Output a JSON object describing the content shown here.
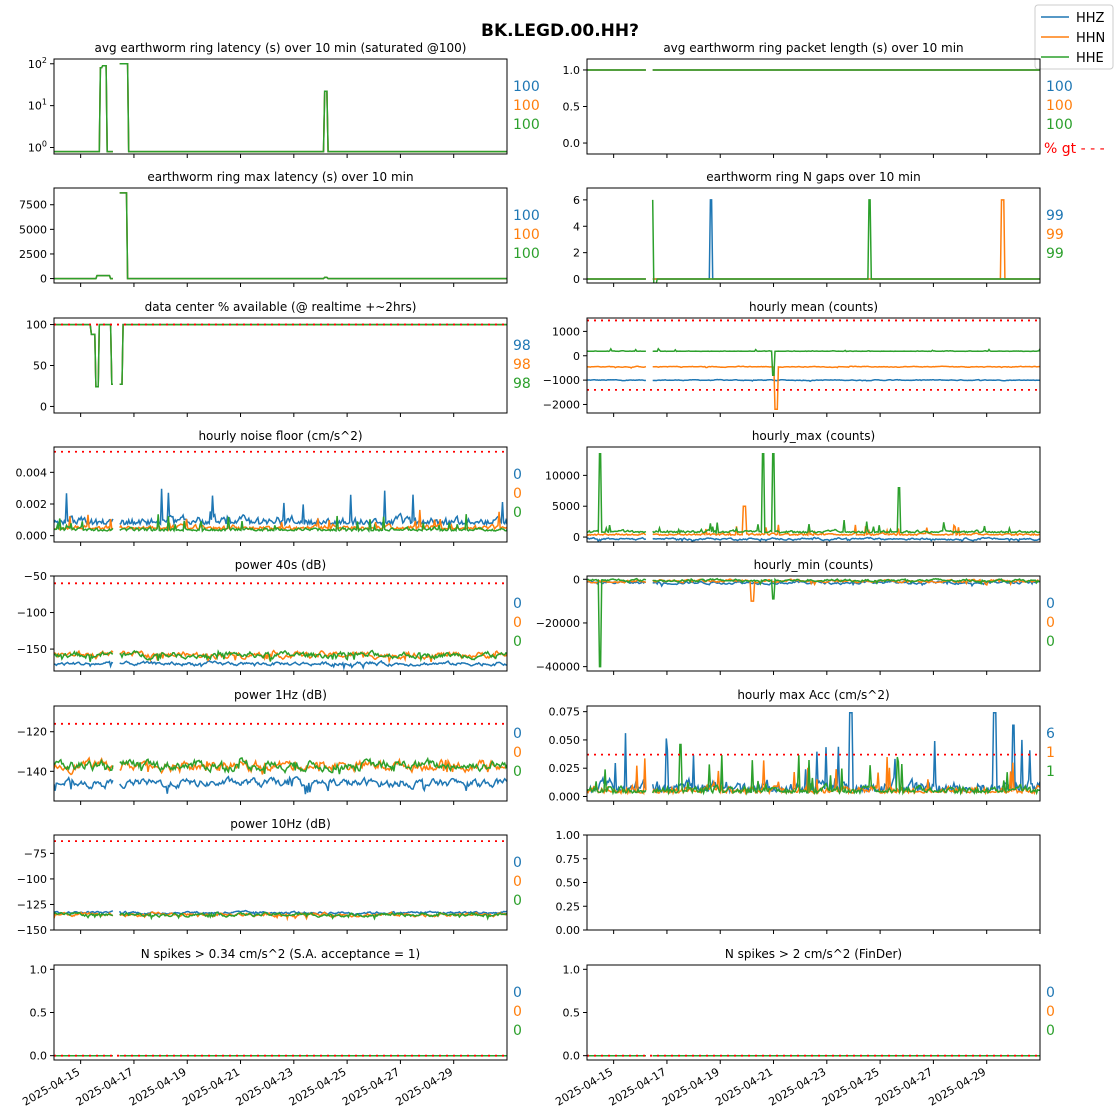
{
  "figure_title": "BK.LEGD.00.HH?",
  "legend": {
    "placement": "top-right",
    "entries": [
      {
        "label": "HHZ",
        "color": "#1f77b4"
      },
      {
        "label": "HHN",
        "color": "#ff7f0e"
      },
      {
        "label": "HHE",
        "color": "#2ca02c"
      }
    ]
  },
  "colors": {
    "HHZ": "#1f77b4",
    "HHN": "#ff7f0e",
    "HHE": "#2ca02c",
    "threshold": "#ff0000"
  },
  "x_ticks": [
    "2025-04-15",
    "2025-04-17",
    "2025-04-19",
    "2025-04-21",
    "2025-04-23",
    "2025-04-25",
    "2025-04-27",
    "2025-04-29"
  ],
  "x_range": [
    "2025-04-14",
    "2025-05-01"
  ],
  "chart_data": [
    {
      "title": "avg earthworm ring latency (s)   over 10 min (saturated @100)",
      "type": "line",
      "yscale": "log",
      "ylim": [
        0.7,
        130
      ],
      "yticks": [
        {
          "v": 1,
          "l": "10"
        },
        {
          "v": 10,
          "l": "10"
        },
        {
          "v": 100,
          "l": "10"
        }
      ],
      "ytick_exp": [
        "0",
        "1",
        "2"
      ],
      "baseline": {
        "HHZ": 0.8,
        "HHN": 0.8,
        "HHE": 0.8
      },
      "spikes": [
        {
          "t": 1.8,
          "v": 80,
          "w": 0.08
        },
        {
          "t": 1.9,
          "v": 90,
          "w": 0.08
        },
        {
          "t": 2.55,
          "v": 100,
          "w": 0.15
        },
        {
          "t": 2.7,
          "v": 100,
          "w": 0.1
        },
        {
          "t": 10.2,
          "v": 22,
          "w": 0.05
        }
      ],
      "stats": [
        "100",
        "100",
        "100"
      ],
      "threshold": null,
      "gt_label": null
    },
    {
      "title": "avg earthworm ring packet length (s)   over 10 min",
      "type": "line",
      "yscale": "linear",
      "ylim": [
        -0.15,
        1.15
      ],
      "yticks": [
        {
          "v": 0,
          "l": "0.0"
        },
        {
          "v": 0.5,
          "l": "0.5"
        },
        {
          "v": 1,
          "l": "1.0"
        }
      ],
      "baseline": {
        "HHZ": 1,
        "HHN": 1,
        "HHE": 1
      },
      "spikes": [],
      "stats": [
        "100",
        "100",
        "100"
      ],
      "threshold": null,
      "gt_label": "% gt - - -"
    },
    {
      "title": "earthworm ring max latency (s)   over 10 min",
      "type": "line",
      "yscale": "linear",
      "ylim": [
        -450,
        9200
      ],
      "yticks": [
        {
          "v": 0,
          "l": "0"
        },
        {
          "v": 2500,
          "l": "2500"
        },
        {
          "v": 5000,
          "l": "5000"
        },
        {
          "v": 7500,
          "l": "7500"
        }
      ],
      "baseline": {
        "HHZ": 0,
        "HHN": 0,
        "HHE": 0
      },
      "spikes": [
        {
          "t": 1.85,
          "v": 300,
          "w": 0.25
        },
        {
          "t": 2.55,
          "v": 8700,
          "w": 0.1
        },
        {
          "t": 2.65,
          "v": 8700,
          "w": 0.1
        },
        {
          "t": 10.2,
          "v": 120,
          "w": 0.05
        }
      ],
      "stats": [
        "100",
        "100",
        "100"
      ],
      "threshold": null,
      "gt_label": null
    },
    {
      "title": "earthworm ring N gaps   over 10 min",
      "type": "line",
      "yscale": "linear",
      "ylim": [
        -0.3,
        6.9
      ],
      "yticks": [
        {
          "v": 0,
          "l": "0"
        },
        {
          "v": 2,
          "l": "2"
        },
        {
          "v": 4,
          "l": "4"
        },
        {
          "v": 6,
          "l": "6"
        }
      ],
      "baseline": {
        "HHZ": 0,
        "HHN": 0,
        "HHE": 0
      },
      "spike_series": [
        {
          "ch": "HHE",
          "t": 2.5,
          "v": 6,
          "w": 0.05
        },
        {
          "ch": "HHE",
          "t": 2.55,
          "v": -0.4,
          "w": 0.05
        },
        {
          "ch": "HHZ",
          "t": 4.65,
          "v": 6,
          "w": 0.06
        },
        {
          "ch": "HHE",
          "t": 10.6,
          "v": 6,
          "w": 0.06
        },
        {
          "ch": "HHN",
          "t": 15.6,
          "v": 6,
          "w": 0.06
        }
      ],
      "stats": [
        "99",
        "99",
        "99"
      ],
      "threshold": null,
      "gt_label": null
    },
    {
      "title": "data center % available (@ realtime +~2hrs)",
      "type": "line",
      "yscale": "linear",
      "ylim": [
        -8,
        108
      ],
      "yticks": [
        {
          "v": 0,
          "l": "0"
        },
        {
          "v": 50,
          "l": "50"
        },
        {
          "v": 100,
          "l": "100"
        }
      ],
      "baseline": {
        "HHZ": 100,
        "HHN": 100,
        "HHE": 100
      },
      "spikes": [
        {
          "t": 1.5,
          "v": 88,
          "w": 0.1
        },
        {
          "t": 1.6,
          "v": 24,
          "w": 0.06
        },
        {
          "t": 2.2,
          "v": 27,
          "w": 0.06
        },
        {
          "t": 2.5,
          "v": 27,
          "w": 0.06
        }
      ],
      "stats": [
        "98",
        "98",
        "98"
      ],
      "threshold": 100,
      "gt_label": null
    },
    {
      "title": "hourly mean (counts)",
      "type": "line",
      "yscale": "linear",
      "ylim": [
        -2350,
        1550
      ],
      "yticks": [
        {
          "v": -2000,
          "l": "−2000"
        },
        {
          "v": -1000,
          "l": "−1000"
        },
        {
          "v": 0,
          "l": "0"
        },
        {
          "v": 1000,
          "l": "1000"
        }
      ],
      "baseline": {
        "HHZ": -1000,
        "HHN": -450,
        "HHE": 180
      },
      "noise_amp": {
        "HHZ": 40,
        "HHN": 40,
        "HHE": 40
      },
      "spike_series": [
        {
          "ch": "HHN",
          "t": 7.1,
          "v": -2200,
          "w": 0.05
        },
        {
          "ch": "HHE",
          "t": 7.0,
          "v": -800,
          "w": 0.05
        }
      ],
      "stats": [],
      "threshold_lines": [
        1450,
        -1400
      ],
      "gt_label": null
    },
    {
      "title": "hourly noise floor (cm/s^2)",
      "type": "line",
      "yscale": "linear",
      "ylim": [
        -0.0004,
        0.0056
      ],
      "yticks": [
        {
          "v": 0,
          "l": "0.000"
        },
        {
          "v": 0.002,
          "l": "0.002"
        },
        {
          "v": 0.004,
          "l": "0.004"
        }
      ],
      "baseline": {
        "HHZ": 0.0007,
        "HHN": 0.0004,
        "HHE": 0.0003
      },
      "noise_amp": {
        "HHZ": 0.0009,
        "HHN": 0.0005,
        "HHE": 0.0004
      },
      "stats": [
        "0",
        "0",
        "0"
      ],
      "threshold": 0.0053,
      "gt_label": null
    },
    {
      "title": "hourly_max (counts)",
      "type": "line",
      "yscale": "linear",
      "ylim": [
        -800,
        14600
      ],
      "yticks": [
        {
          "v": 0,
          "l": "0"
        },
        {
          "v": 5000,
          "l": "5000"
        },
        {
          "v": 10000,
          "l": "10000"
        }
      ],
      "baseline": {
        "HHZ": -300,
        "HHN": 300,
        "HHE": 700
      },
      "noise_amp": {
        "HHZ": 400,
        "HHN": 600,
        "HHE": 800
      },
      "spike_series": [
        {
          "ch": "HHE",
          "t": 0.5,
          "v": 13500,
          "w": 0.05
        },
        {
          "ch": "HHE",
          "t": 6.6,
          "v": 13500,
          "w": 0.05
        },
        {
          "ch": "HHE",
          "t": 7.0,
          "v": 13500,
          "w": 0.05
        },
        {
          "ch": "HHN",
          "t": 5.9,
          "v": 5000,
          "w": 0.05
        },
        {
          "ch": "HHE",
          "t": 11.7,
          "v": 8000,
          "w": 0.05
        }
      ],
      "stats": [],
      "threshold": null,
      "gt_label": null
    },
    {
      "title": "power 40s (dB)",
      "type": "line",
      "yscale": "linear",
      "ylim": [
        -180,
        -50
      ],
      "yticks": [
        {
          "v": -150,
          "l": "−150"
        },
        {
          "v": -100,
          "l": "−100"
        },
        {
          "v": -50,
          "l": "−50"
        }
      ],
      "baseline": {
        "HHZ": -170,
        "HHN": -158,
        "HHE": -158
      },
      "noise_amp": {
        "HHZ": 6,
        "HHN": 10,
        "HHE": 10
      },
      "stats": [
        "0",
        "0",
        "0"
      ],
      "threshold": -60,
      "gt_label": null
    },
    {
      "title": "hourly_min (counts)",
      "type": "line",
      "yscale": "linear",
      "ylim": [
        -42000,
        1500
      ],
      "yticks": [
        {
          "v": -40000,
          "l": "−40000"
        },
        {
          "v": -20000,
          "l": "−20000"
        },
        {
          "v": 0,
          "l": "0"
        }
      ],
      "baseline": {
        "HHZ": -1500,
        "HHN": -800,
        "HHE": -500
      },
      "noise_amp": {
        "HHZ": 1500,
        "HHN": 1500,
        "HHE": 1500
      },
      "spike_series": [
        {
          "ch": "HHE",
          "t": 0.5,
          "v": -40000,
          "w": 0.05
        },
        {
          "ch": "HHN",
          "t": 6.2,
          "v": -10000,
          "w": 0.05
        },
        {
          "ch": "HHE",
          "t": 7.0,
          "v": -9000,
          "w": 0.05
        }
      ],
      "stats": [
        "0",
        "0",
        "0"
      ],
      "threshold": null,
      "gt_label": null
    },
    {
      "title": "power 1Hz (dB)",
      "type": "line",
      "yscale": "linear",
      "ylim": [
        -155,
        -107
      ],
      "yticks": [
        {
          "v": -140,
          "l": "−140"
        },
        {
          "v": -120,
          "l": "−120"
        }
      ],
      "baseline": {
        "HHZ": -146,
        "HHN": -137,
        "HHE": -137
      },
      "noise_amp": {
        "HHZ": 5,
        "HHN": 6,
        "HHE": 6
      },
      "stats": [
        "0",
        "0",
        "0"
      ],
      "threshold": -116,
      "gt_label": null
    },
    {
      "title": "hourly max Acc (cm/s^2)",
      "type": "line",
      "yscale": "linear",
      "ylim": [
        -0.004,
        0.08
      ],
      "yticks": [
        {
          "v": 0,
          "l": "0.000"
        },
        {
          "v": 0.025,
          "l": "0.025"
        },
        {
          "v": 0.05,
          "l": "0.050"
        },
        {
          "v": 0.075,
          "l": "0.075"
        }
      ],
      "baseline": {
        "HHZ": 0.004,
        "HHN": 0.003,
        "HHE": 0.003
      },
      "noise_amp": {
        "HHZ": 0.02,
        "HHN": 0.012,
        "HHE": 0.012
      },
      "spike_series": [
        {
          "ch": "HHZ",
          "t": 9.9,
          "v": 0.074,
          "w": 0.05
        },
        {
          "ch": "HHZ",
          "t": 15.3,
          "v": 0.074,
          "w": 0.05
        },
        {
          "ch": "HHZ",
          "t": 16.0,
          "v": 0.063,
          "w": 0.05
        },
        {
          "ch": "HHE",
          "t": 3.5,
          "v": 0.046,
          "w": 0.05
        }
      ],
      "stats": [
        "6",
        "1",
        "1"
      ],
      "threshold": 0.037,
      "gt_label": null
    },
    {
      "title": "power 10Hz (dB)",
      "type": "line",
      "yscale": "linear",
      "ylim": [
        -150,
        -57
      ],
      "yticks": [
        {
          "v": -150,
          "l": "−150"
        },
        {
          "v": -125,
          "l": "−125"
        },
        {
          "v": -100,
          "l": "−100"
        },
        {
          "v": -75,
          "l": "−75"
        }
      ],
      "baseline": {
        "HHZ": -133,
        "HHN": -135,
        "HHE": -135
      },
      "noise_amp": {
        "HHZ": 3,
        "HHN": 4,
        "HHE": 4
      },
      "stats": [
        "0",
        "0",
        "0"
      ],
      "threshold": -63,
      "gt_label": null
    },
    {
      "title": "",
      "type": "empty",
      "yscale": "linear",
      "ylim": [
        0,
        1
      ],
      "yticks": [
        {
          "v": 0,
          "l": "0.00"
        },
        {
          "v": 0.25,
          "l": "0.25"
        },
        {
          "v": 0.5,
          "l": "0.50"
        },
        {
          "v": 0.75,
          "l": "0.75"
        },
        {
          "v": 1,
          "l": "1.00"
        }
      ],
      "stats": [],
      "threshold": null,
      "gt_label": null
    },
    {
      "title": "N spikes > 0.34 cm/s^2 (S.A. acceptance = 1)",
      "type": "line",
      "yscale": "linear",
      "ylim": [
        -0.05,
        1.05
      ],
      "yticks": [
        {
          "v": 0,
          "l": "0.0"
        },
        {
          "v": 0.5,
          "l": "0.5"
        },
        {
          "v": 1,
          "l": "1.0"
        }
      ],
      "baseline": {
        "HHZ": 0,
        "HHN": 0,
        "HHE": 0
      },
      "stats": [
        "0",
        "0",
        "0"
      ],
      "threshold": 0,
      "gt_label": null
    },
    {
      "title": "N spikes > 2 cm/s^2 (FinDer)",
      "type": "line",
      "yscale": "linear",
      "ylim": [
        -0.05,
        1.05
      ],
      "yticks": [
        {
          "v": 0,
          "l": "0.0"
        },
        {
          "v": 0.5,
          "l": "0.5"
        },
        {
          "v": 1,
          "l": "1.0"
        }
      ],
      "baseline": {
        "HHZ": 0,
        "HHN": 0,
        "HHE": 0
      },
      "stats": [
        "0",
        "0",
        "0"
      ],
      "threshold": 0,
      "gt_label": null
    }
  ]
}
